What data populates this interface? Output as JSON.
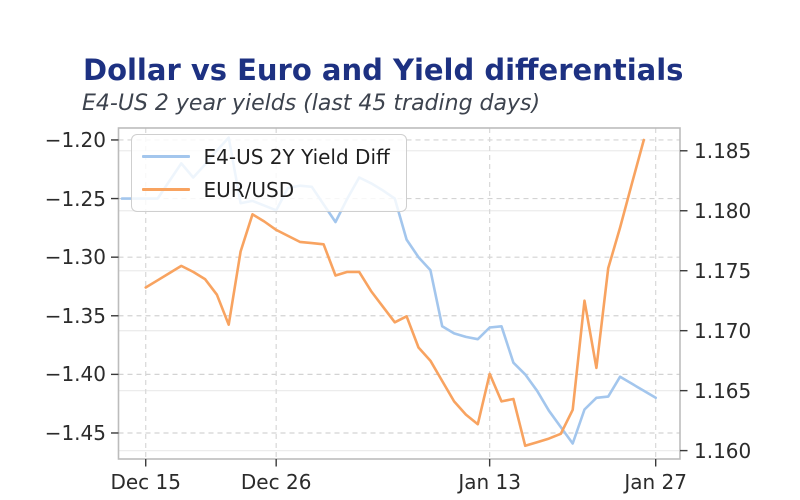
{
  "chart_data": {
    "type": "line",
    "title": "Dollar vs Euro and Yield differentials",
    "subtitle": "E4-US 2 year yields (last 45 trading days)",
    "x_axis": {
      "unit": "calendar-days-since-first-observation",
      "min": -0.295,
      "max": 47.05,
      "ticks": [
        {
          "value": 2,
          "label": "Dec 15"
        },
        {
          "value": 13,
          "label": "Dec 26"
        },
        {
          "value": 31,
          "label": "Jan 13"
        },
        {
          "value": 45,
          "label": "Jan 27"
        }
      ]
    },
    "left_axis": {
      "series_name": "E4-US 2Y Yield Diff",
      "min": -1.4722,
      "max": -1.1898,
      "ticks": [
        {
          "value": -1.2,
          "label": "−1.20"
        },
        {
          "value": -1.25,
          "label": "−1.25"
        },
        {
          "value": -1.3,
          "label": "−1.30"
        },
        {
          "value": -1.35,
          "label": "−1.35"
        },
        {
          "value": -1.4,
          "label": "−1.40"
        },
        {
          "value": -1.45,
          "label": "−1.45"
        }
      ]
    },
    "right_axis": {
      "series_name": "EUR/USD",
      "min": 1.1593,
      "max": 1.1869,
      "ticks": [
        {
          "value": 1.185,
          "label": "1.185"
        },
        {
          "value": 1.18,
          "label": "1.180"
        },
        {
          "value": 1.175,
          "label": "1.175"
        },
        {
          "value": 1.17,
          "label": "1.170"
        },
        {
          "value": 1.165,
          "label": "1.165"
        },
        {
          "value": 1.16,
          "label": "1.160"
        }
      ]
    },
    "legend": {
      "position": "upper-left"
    },
    "grid": {
      "horizontal_left_axis": {
        "style": "dashed",
        "color": "#d3d3d3"
      },
      "horizontal_right_axis": {
        "style": "solid",
        "color": "#ececec"
      },
      "vertical": {
        "style": "dashed",
        "color": "#d8d8d8"
      }
    },
    "series": [
      {
        "name": "E4-US 2Y Yield Diff",
        "axis": "left",
        "color": "#a3c6ed",
        "points": [
          [
            0,
            -1.25
          ],
          [
            1,
            -1.25
          ],
          [
            2,
            -1.25
          ],
          [
            3,
            -1.25
          ],
          [
            4,
            -1.235
          ],
          [
            5,
            -1.22
          ],
          [
            6,
            -1.232
          ],
          [
            7,
            -1.221
          ],
          [
            8,
            -1.209
          ],
          [
            9,
            -1.198
          ],
          [
            10,
            -1.254
          ],
          [
            11,
            -1.252
          ],
          [
            12,
            -1.256
          ],
          [
            13,
            -1.26
          ],
          [
            14,
            -1.241
          ],
          [
            15,
            -1.239
          ],
          [
            16,
            -1.24
          ],
          [
            17,
            -1.255
          ],
          [
            18,
            -1.27
          ],
          [
            19,
            -1.25
          ],
          [
            20,
            -1.232
          ],
          [
            21,
            -1.237
          ],
          [
            22,
            -1.243
          ],
          [
            23,
            -1.25
          ],
          [
            24,
            -1.285
          ],
          [
            25,
            -1.3
          ],
          [
            26,
            -1.311
          ],
          [
            27,
            -1.359
          ],
          [
            28,
            -1.365
          ],
          [
            29,
            -1.368
          ],
          [
            30,
            -1.37
          ],
          [
            31,
            -1.36
          ],
          [
            32,
            -1.359
          ],
          [
            33,
            -1.39
          ],
          [
            34,
            -1.4
          ],
          [
            35,
            -1.414
          ],
          [
            36,
            -1.431
          ],
          [
            37,
            -1.445
          ],
          [
            38,
            -1.459
          ],
          [
            39,
            -1.43
          ],
          [
            40,
            -1.42
          ],
          [
            41,
            -1.419
          ],
          [
            42,
            -1.402
          ],
          [
            43,
            -1.408
          ],
          [
            44,
            -1.414
          ],
          [
            45,
            -1.42
          ]
        ]
      },
      {
        "name": "EUR/USD",
        "axis": "right",
        "color": "#f8a360",
        "points": [
          [
            2,
            1.1736
          ],
          [
            3,
            1.1742
          ],
          [
            4,
            1.1748
          ],
          [
            5,
            1.1754
          ],
          [
            6,
            1.1749
          ],
          [
            7,
            1.1743
          ],
          [
            8,
            1.173
          ],
          [
            9,
            1.1705
          ],
          [
            10,
            1.1766
          ],
          [
            11,
            1.1797
          ],
          [
            12,
            1.1791
          ],
          [
            13,
            1.1784
          ],
          [
            14,
            1.1779
          ],
          [
            15,
            1.1774
          ],
          [
            16,
            1.1773
          ],
          [
            17,
            1.1772
          ],
          [
            18,
            1.1746
          ],
          [
            19,
            1.1749
          ],
          [
            20,
            1.1749
          ],
          [
            21,
            1.1733
          ],
          [
            22,
            1.172
          ],
          [
            23,
            1.1707
          ],
          [
            24,
            1.1712
          ],
          [
            25,
            1.1686
          ],
          [
            26,
            1.1675
          ],
          [
            27,
            1.1658
          ],
          [
            28,
            1.1641
          ],
          [
            29,
            1.163
          ],
          [
            30,
            1.1622
          ],
          [
            31,
            1.1664
          ],
          [
            32,
            1.1641
          ],
          [
            33,
            1.1643
          ],
          [
            34,
            1.1604
          ],
          [
            35,
            1.1607
          ],
          [
            36,
            1.161
          ],
          [
            37,
            1.1614
          ],
          [
            38,
            1.1634
          ],
          [
            39,
            1.1725
          ],
          [
            40,
            1.1669
          ],
          [
            41,
            1.1752
          ],
          [
            42,
            1.1786
          ],
          [
            43,
            1.1823
          ],
          [
            44,
            1.1859
          ]
        ]
      }
    ]
  },
  "styles": {
    "background": "#ffffff",
    "title_color": "#1d3182",
    "subtitle_color": "#3d434e",
    "tick_label_color": "#2b2b2b",
    "axis_tick_color": "#3a3a3a",
    "plot_border_color": "#bcbcbc",
    "line_width": 2.6
  }
}
